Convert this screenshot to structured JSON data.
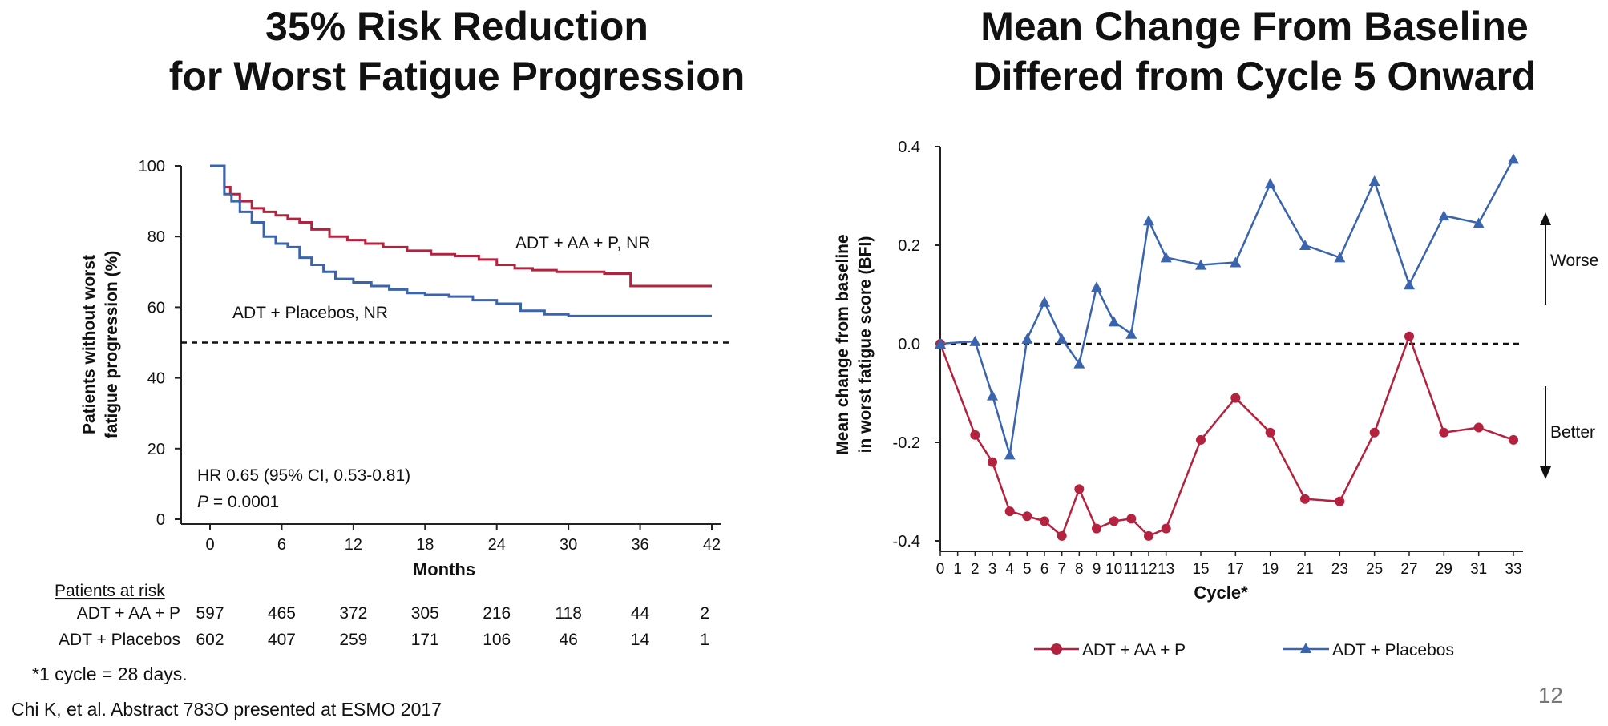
{
  "left_title": [
    "35% Risk Reduction",
    "for Worst Fatigue Progression"
  ],
  "right_title": [
    "Mean Change From Baseline",
    "Differed from Cycle 5 Onward"
  ],
  "footnote": "*1 cycle = 28 days.",
  "citation": "Chi K, et al. Abstract 783O presented at ESMO 2017",
  "page_number": "12",
  "colors": {
    "red": "#b5223f",
    "blue": "#3a64ad",
    "text": "#111111"
  },
  "chart_data": [
    {
      "type": "line",
      "subtype": "kaplan-meier step",
      "title": "35% Risk Reduction for Worst Fatigue Progression",
      "xlabel": "Months",
      "ylabel": "Patients without worst fatigue progression (%)",
      "xlim": [
        0,
        42
      ],
      "ylim": [
        0,
        100
      ],
      "xticks": [
        0,
        6,
        12,
        18,
        24,
        30,
        36,
        42
      ],
      "yticks": [
        0,
        20,
        40,
        60,
        80,
        100
      ],
      "reference_line": {
        "y": 50,
        "style": "dashed"
      },
      "series": [
        {
          "name": "ADT + AA + P, NR",
          "color": "#b5223f",
          "x": [
            0,
            0.8,
            1.2,
            1.7,
            2.5,
            3.5,
            4.5,
            5.5,
            6.5,
            7.5,
            8.5,
            10,
            11.5,
            13,
            14.5,
            16.5,
            18.5,
            20.5,
            22.5,
            24,
            25.5,
            27,
            29,
            31,
            33,
            35.2,
            38,
            42
          ],
          "y": [
            100,
            100,
            94,
            92,
            90,
            88,
            87,
            86,
            85,
            84,
            82,
            80,
            79,
            78,
            77,
            76,
            75,
            74.5,
            73.5,
            72,
            71,
            70.5,
            70,
            70,
            69.5,
            66,
            66,
            66
          ]
        },
        {
          "name": "ADT + Placebos, NR",
          "color": "#3a64ad",
          "x": [
            0,
            0.8,
            1.2,
            1.8,
            2.5,
            3.5,
            4.5,
            5.5,
            6.5,
            7.5,
            8.5,
            9.5,
            10.5,
            12,
            13.5,
            15,
            16.5,
            18,
            20,
            22,
            24,
            26,
            28,
            30,
            34,
            38,
            42
          ],
          "y": [
            100,
            100,
            92,
            90,
            87,
            84,
            80,
            78,
            77,
            74,
            72,
            70,
            68,
            67,
            66,
            65,
            64,
            63.5,
            63,
            62,
            61,
            59,
            58,
            57.5,
            57.5,
            57.5,
            57.5
          ]
        }
      ],
      "annotations": [
        {
          "text": "ADT + AA + P, NR"
        },
        {
          "text": "ADT + Placebos, NR"
        },
        {
          "text": "HR 0.65 (95% CI, 0.53-0.81)"
        },
        {
          "text_italic": "P",
          "text": " = 0.0001"
        }
      ],
      "risk_table": {
        "header": "Patients at risk",
        "rows": [
          {
            "label": "ADT + AA + P",
            "values": [
              "597",
              "465",
              "372",
              "305",
              "216",
              "118",
              "44",
              "2"
            ]
          },
          {
            "label": "ADT + Placebos",
            "values": [
              "602",
              "407",
              "259",
              "171",
              "106",
              "46",
              "14",
              "1"
            ]
          }
        ]
      }
    },
    {
      "type": "line",
      "title": "Mean Change From Baseline Differed from Cycle 5 Onward",
      "xlabel": "Cycle*",
      "ylabel": "Mean change from baseline in worst fatigue score (BFI)",
      "ylim": [
        -0.4,
        0.4
      ],
      "yticks": [
        "0.4",
        "0.2",
        "0.0",
        "-0.2",
        "-0.4"
      ],
      "xticks": [
        "0",
        "1",
        "2",
        "3",
        "4",
        "5",
        "6",
        "7",
        "8",
        "9",
        "10",
        "11",
        "12",
        "13",
        "15",
        "17",
        "19",
        "21",
        "23",
        "25",
        "27",
        "29",
        "31",
        "33"
      ],
      "x": [
        0,
        2,
        3,
        4,
        5,
        6,
        7,
        8,
        9,
        10,
        11,
        12,
        13,
        15,
        17,
        19,
        21,
        23,
        25,
        27,
        29,
        31,
        33
      ],
      "reference_line": {
        "y": 0,
        "style": "dashed"
      },
      "series": [
        {
          "name": "ADT + AA + P",
          "color": "#b5223f",
          "marker": "circle",
          "y": [
            0.0,
            -0.185,
            -0.24,
            -0.34,
            -0.35,
            -0.36,
            -0.39,
            -0.295,
            -0.375,
            -0.36,
            -0.355,
            -0.39,
            -0.375,
            -0.195,
            -0.11,
            -0.18,
            -0.315,
            -0.32,
            -0.18,
            0.015,
            -0.18,
            -0.17,
            -0.195
          ]
        },
        {
          "name": "ADT + Placebos",
          "color": "#3a64ad",
          "marker": "triangle",
          "y": [
            0.0,
            0.005,
            -0.105,
            -0.225,
            0.01,
            0.085,
            0.01,
            -0.04,
            0.115,
            0.045,
            0.02,
            0.25,
            0.175,
            0.16,
            0.165,
            0.325,
            0.2,
            0.175,
            0.33,
            0.12,
            0.26,
            0.245,
            0.375
          ]
        }
      ],
      "arrows": {
        "worse": "Worse",
        "better": "Better"
      },
      "legend": {
        "placement": "bottom"
      }
    }
  ]
}
